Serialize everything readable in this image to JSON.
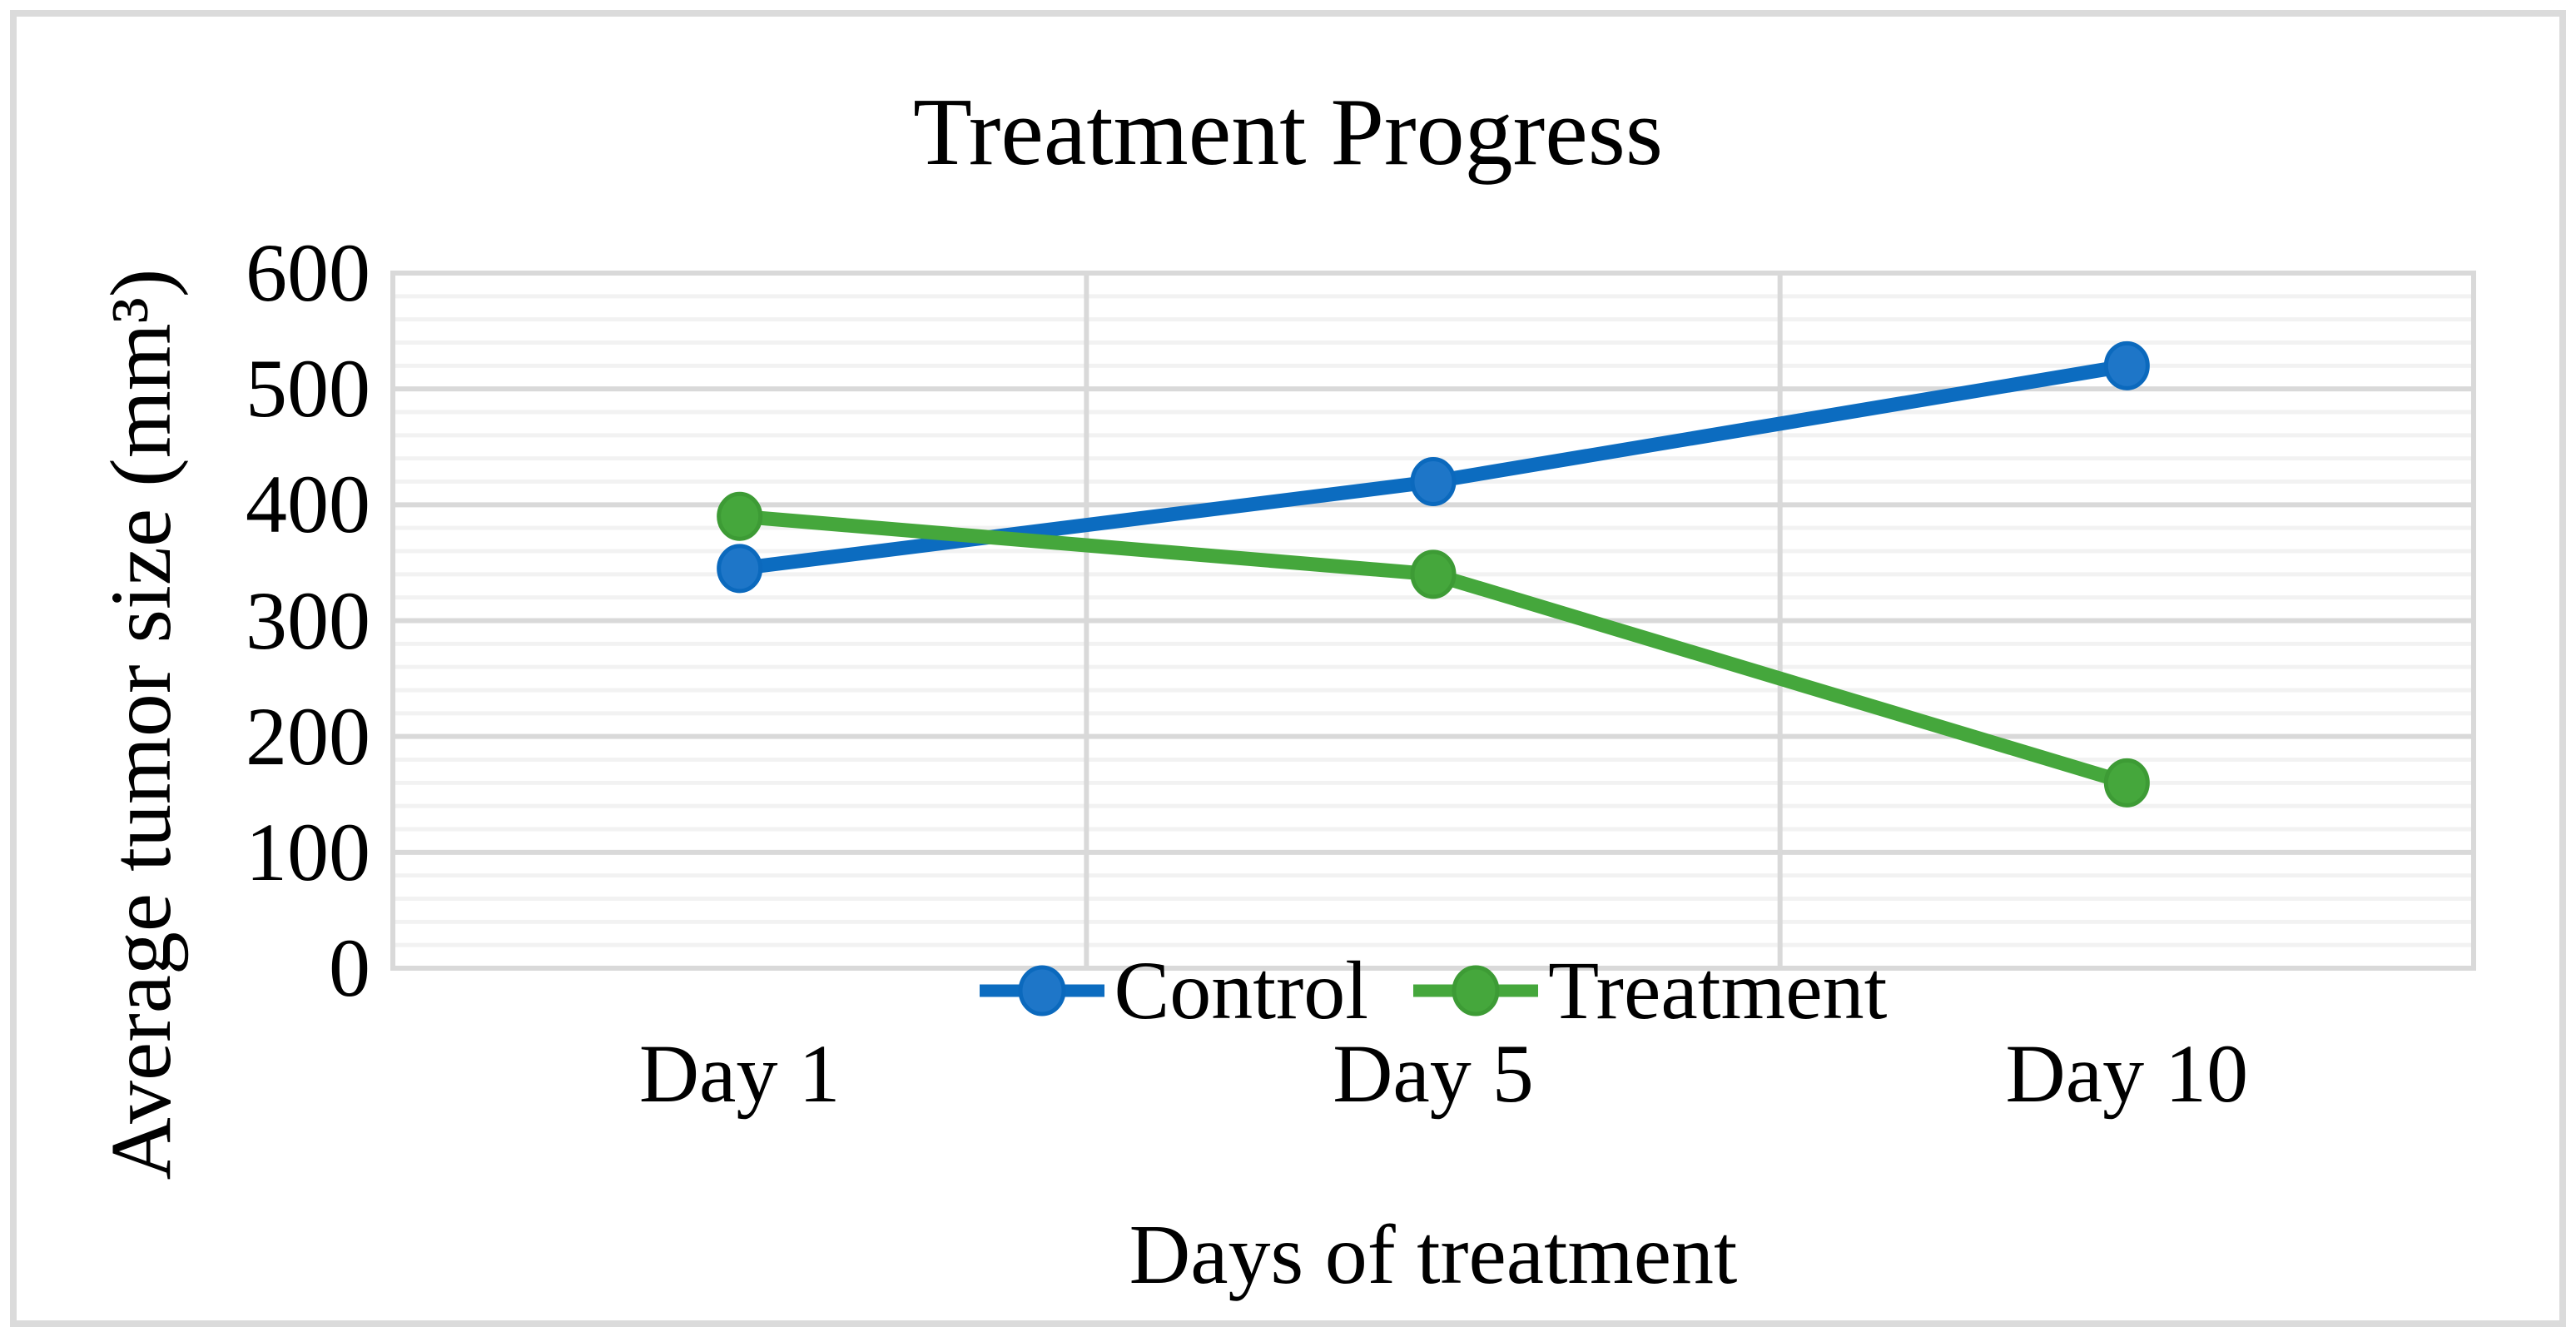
{
  "figure": {
    "title": "Treatment Progress",
    "x_axis_title": "Days of treatment",
    "y_axis_title": "Average tumor size (mm³)"
  },
  "chart_data": {
    "type": "line",
    "title": "Treatment Progress",
    "xlabel": "Days of treatment",
    "ylabel": "Average tumor size (mm³)",
    "categories": [
      "Day 1",
      "Day 5",
      "Day 10"
    ],
    "series": [
      {
        "name": "Control",
        "values": [
          345,
          420,
          520
        ],
        "line_color": "#0c6cc0",
        "marker_fill": "#1e76c8",
        "marker_stroke": "#0b69bd"
      },
      {
        "name": "Treatment",
        "values": [
          390,
          340,
          160
        ],
        "line_color": "#45a73c",
        "marker_fill": "#45a73c",
        "marker_stroke": "#3d9b35"
      }
    ],
    "y_axis": {
      "min": 0,
      "max": 600,
      "major_step": 100,
      "minor_step": 20,
      "tick_labels": [
        "0",
        "100",
        "200",
        "300",
        "400",
        "500",
        "600"
      ]
    },
    "legend": {
      "position": "bottom-center",
      "entries": [
        "Control",
        "Treatment"
      ]
    },
    "grid": {
      "horizontal_major": true,
      "horizontal_minor": true,
      "vertical_category_dividers": true
    },
    "colors": {
      "major_grid": "#d9d9d9",
      "minor_grid": "#f2f2f2",
      "plot_border": "#d9d9d9",
      "outer_frame": "#dbdbdb",
      "text": "#000000",
      "background": "#ffffff"
    }
  }
}
